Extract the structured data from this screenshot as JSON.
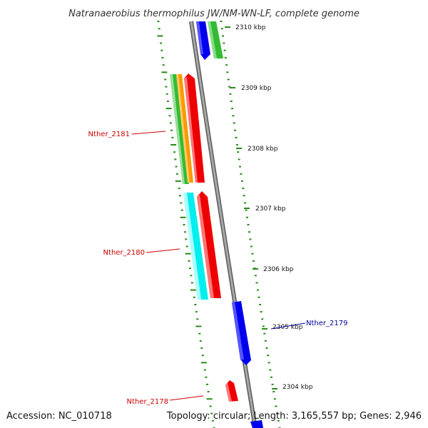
{
  "title": "Natranaerobius thermophilus JW/NM-WN-LF, complete genome",
  "footer": {
    "accession": "Accession: NC_010718",
    "topology": "Topology: circular; Length: 3,165,557 bp; Genes: 2,946"
  },
  "ticks": [
    "2310 kbp",
    "2309 kbp",
    "2308 kbp",
    "2307 kbp",
    "2306 kbp",
    "2305 kbp",
    "2304 kbp"
  ],
  "gene_labels": [
    {
      "text": "Nther_2181",
      "color": "#cc0000"
    },
    {
      "text": "Nther_2180",
      "color": "#cc0000"
    },
    {
      "text": "Nther_2179",
      "color": "#000099"
    },
    {
      "text": "Nther_2178",
      "color": "#cc0000"
    }
  ],
  "colors": {
    "backbone": "#8c8c8c",
    "dots": "#2a8a1a",
    "blue": "#0000ee",
    "green": "#33bb33",
    "orange": "#ff9900",
    "red": "#ee0000",
    "cyan": "#00eeee"
  }
}
